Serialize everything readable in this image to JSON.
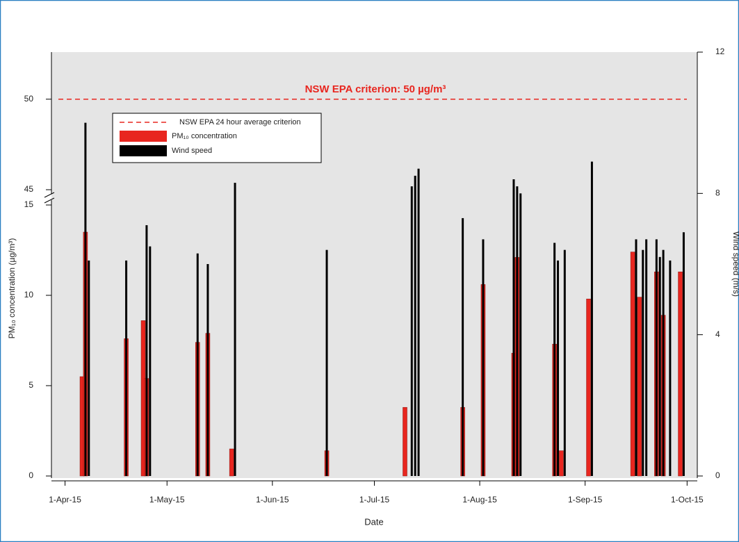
{
  "chart_data": {
    "type": "bar",
    "annotation": "NSW EPA criterion: 50 µg/m³",
    "criterion": {
      "name": "NSW EPA 24 hour average criterion",
      "value": 50,
      "color": "#e8261f"
    },
    "xlabel": "Date",
    "ylabel": "PM₁₀ concentration (µg/m³)",
    "y2label": "Wind speed (m/s)",
    "xlim": [
      "2015-03-28",
      "2015-10-04"
    ],
    "xticks": [
      {
        "value": "2015-04-01",
        "label": "1-Apr-15"
      },
      {
        "value": "2015-05-01",
        "label": "1-May-15"
      },
      {
        "value": "2015-06-01",
        "label": "1-Jun-15"
      },
      {
        "value": "2015-07-01",
        "label": "1-Jul-15"
      },
      {
        "value": "2015-08-01",
        "label": "1-Aug-15"
      },
      {
        "value": "2015-09-01",
        "label": "1-Sep-15"
      },
      {
        "value": "2015-10-01",
        "label": "1-Oct-15"
      }
    ],
    "y_segments": [
      {
        "ylim": [
          0,
          15
        ],
        "yticks": [
          0,
          5,
          10,
          15
        ]
      },
      {
        "ylim": [
          45,
          52.6
        ],
        "yticks": [
          45,
          50
        ]
      }
    ],
    "y2lim": [
      0,
      12
    ],
    "y2ticks": [
      0,
      4,
      8,
      12
    ],
    "series": [
      {
        "name": "PM₁₀ concentration",
        "color": "#e8261f",
        "x": [
          "2015-04-06",
          "2015-04-07",
          "2015-04-19",
          "2015-04-24",
          "2015-04-25",
          "2015-05-10",
          "2015-05-13",
          "2015-05-20",
          "2015-06-17",
          "2015-07-10",
          "2015-07-27",
          "2015-08-02",
          "2015-08-11",
          "2015-08-12",
          "2015-08-23",
          "2015-08-25",
          "2015-09-02",
          "2015-09-15",
          "2015-09-17",
          "2015-09-22",
          "2015-09-24",
          "2015-09-29"
        ],
        "values": [
          5.5,
          13.5,
          7.6,
          8.6,
          5.4,
          7.4,
          7.9,
          1.5,
          1.4,
          3.8,
          3.8,
          10.6,
          6.8,
          12.1,
          7.3,
          1.4,
          9.8,
          12.4,
          9.9,
          11.3,
          8.9,
          11.3
        ]
      },
      {
        "name": "Wind speed",
        "color": "#000000",
        "axis": "y2",
        "x": [
          "2015-04-07",
          "2015-04-08",
          "2015-04-19",
          "2015-04-25",
          "2015-04-26",
          "2015-05-10",
          "2015-05-13",
          "2015-05-21",
          "2015-06-17",
          "2015-07-12",
          "2015-07-13",
          "2015-07-14",
          "2015-07-27",
          "2015-08-02",
          "2015-08-11",
          "2015-08-12",
          "2015-08-13",
          "2015-08-23",
          "2015-08-24",
          "2015-08-26",
          "2015-09-03",
          "2015-09-16",
          "2015-09-18",
          "2015-09-19",
          "2015-09-22",
          "2015-09-23",
          "2015-09-24",
          "2015-09-26",
          "2015-09-30"
        ],
        "values": [
          10.0,
          6.1,
          6.1,
          7.1,
          6.5,
          6.3,
          6.0,
          8.3,
          6.4,
          8.2,
          8.5,
          8.7,
          7.3,
          6.7,
          8.4,
          8.2,
          8.0,
          6.6,
          6.1,
          6.4,
          8.9,
          6.7,
          6.4,
          6.7,
          6.7,
          6.2,
          6.4,
          6.1,
          6.9
        ]
      }
    ]
  }
}
